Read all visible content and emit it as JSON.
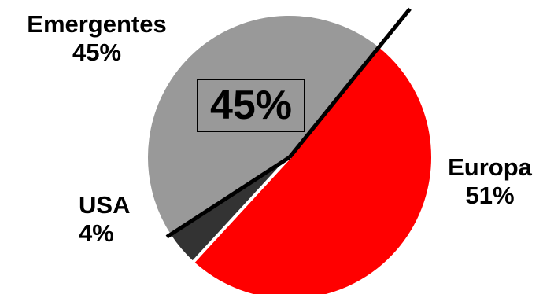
{
  "chart_data": {
    "type": "pie",
    "slices": [
      {
        "label": "Europa",
        "value": 51,
        "value_label": "51%",
        "color": "#ff0000"
      },
      {
        "label": "USA",
        "value": 4,
        "value_label": "4%",
        "color": "#333333"
      },
      {
        "label": "Emergentes",
        "value": 45,
        "value_label": "45%",
        "color": "#999999"
      }
    ],
    "highlight": "45%",
    "title": "",
    "legend": "none"
  }
}
